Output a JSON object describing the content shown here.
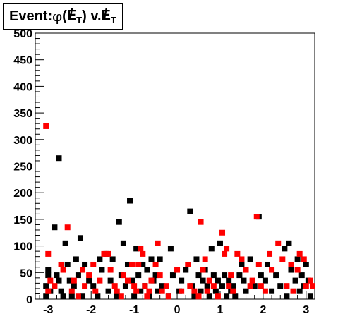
{
  "title": "Event: φ(E̸T) v. E̸T",
  "title_parts": {
    "prefix": "Event: ",
    "phi": "φ",
    "open": "(",
    "met1": "E",
    "sub1": "T",
    "mid": ") v. ",
    "met2": "E",
    "sub2": "T"
  },
  "chart_data": {
    "type": "scatter",
    "title": "Event: φ(E̸T) v. E̸T",
    "xlabel": "",
    "ylabel": "",
    "xlim": [
      -3.3,
      3.2
    ],
    "ylim": [
      0,
      500
    ],
    "xticks": [
      -3,
      -2,
      -1,
      0,
      1,
      2,
      3
    ],
    "yticks": [
      0,
      50,
      100,
      150,
      200,
      250,
      300,
      350,
      400,
      450,
      500
    ],
    "grid": false,
    "legend": "none",
    "marker": "square",
    "series": [
      {
        "color": "#000000",
        "points": [
          [
            -3.05,
            5
          ],
          [
            -3.05,
            25
          ],
          [
            -3.0,
            45
          ],
          [
            -3.0,
            55
          ],
          [
            -2.95,
            15
          ],
          [
            -2.85,
            135
          ],
          [
            -2.8,
            45
          ],
          [
            -2.75,
            35
          ],
          [
            -2.75,
            265
          ],
          [
            -2.7,
            15
          ],
          [
            -2.65,
            5
          ],
          [
            -2.6,
            105
          ],
          [
            -2.55,
            65
          ],
          [
            -2.5,
            35
          ],
          [
            -2.45,
            5
          ],
          [
            -2.4,
            25
          ],
          [
            -2.35,
            75
          ],
          [
            -2.3,
            45
          ],
          [
            -2.25,
            115
          ],
          [
            -2.2,
            5
          ],
          [
            -2.15,
            65
          ],
          [
            -2.05,
            35
          ],
          [
            -1.95,
            25
          ],
          [
            -1.85,
            5
          ],
          [
            -1.8,
            75
          ],
          [
            -1.75,
            55
          ],
          [
            -1.65,
            85
          ],
          [
            -1.6,
            15
          ],
          [
            -1.55,
            35
          ],
          [
            -1.5,
            75
          ],
          [
            -1.4,
            5
          ],
          [
            -1.35,
            145
          ],
          [
            -1.3,
            45
          ],
          [
            -1.25,
            105
          ],
          [
            -1.2,
            25
          ],
          [
            -1.15,
            65
          ],
          [
            -1.1,
            185
          ],
          [
            -1.05,
            35
          ],
          [
            -1.0,
            5
          ],
          [
            -0.95,
            95
          ],
          [
            -0.9,
            45
          ],
          [
            -0.85,
            15
          ],
          [
            -0.8,
            65
          ],
          [
            -0.75,
            25
          ],
          [
            -0.7,
            55
          ],
          [
            -0.65,
            5
          ],
          [
            -0.6,
            75
          ],
          [
            -0.55,
            35
          ],
          [
            -0.5,
            45
          ],
          [
            -0.45,
            15
          ],
          [
            -0.4,
            75
          ],
          [
            -0.35,
            25
          ],
          [
            -0.2,
            5
          ],
          [
            -0.15,
            95
          ],
          [
            -0.1,
            45
          ],
          [
            0.05,
            15
          ],
          [
            0.1,
            35
          ],
          [
            0.2,
            55
          ],
          [
            0.3,
            165
          ],
          [
            0.35,
            25
          ],
          [
            0.4,
            5
          ],
          [
            0.45,
            75
          ],
          [
            0.5,
            45
          ],
          [
            0.55,
            15
          ],
          [
            0.6,
            35
          ],
          [
            0.65,
            55
          ],
          [
            0.7,
            25
          ],
          [
            0.75,
            5
          ],
          [
            0.8,
            95
          ],
          [
            0.85,
            45
          ],
          [
            0.9,
            15
          ],
          [
            0.95,
            35
          ],
          [
            1.0,
            105
          ],
          [
            1.05,
            25
          ],
          [
            1.1,
            45
          ],
          [
            1.15,
            5
          ],
          [
            1.2,
            35
          ],
          [
            1.25,
            15
          ],
          [
            1.3,
            25
          ],
          [
            1.35,
            5
          ],
          [
            1.45,
            45
          ],
          [
            1.5,
            65
          ],
          [
            1.55,
            35
          ],
          [
            1.6,
            15
          ],
          [
            1.7,
            75
          ],
          [
            1.8,
            25
          ],
          [
            1.9,
            155
          ],
          [
            1.95,
            45
          ],
          [
            2.05,
            35
          ],
          [
            2.1,
            65
          ],
          [
            2.2,
            15
          ],
          [
            2.3,
            45
          ],
          [
            2.4,
            25
          ],
          [
            2.5,
            95
          ],
          [
            2.55,
            5
          ],
          [
            2.6,
            105
          ],
          [
            2.65,
            55
          ],
          [
            2.75,
            35
          ],
          [
            2.8,
            75
          ],
          [
            2.85,
            15
          ],
          [
            2.9,
            45
          ],
          [
            2.95,
            25
          ],
          [
            3.0,
            65
          ],
          [
            3.05,
            35
          ],
          [
            3.1,
            5
          ]
        ]
      },
      {
        "color": "#ff0000",
        "points": [
          [
            -3.05,
            325
          ],
          [
            -3.0,
            85
          ],
          [
            -3.0,
            15
          ],
          [
            -2.95,
            35
          ],
          [
            -2.85,
            25
          ],
          [
            -2.7,
            65
          ],
          [
            -2.65,
            55
          ],
          [
            -2.55,
            135
          ],
          [
            -2.45,
            15
          ],
          [
            -2.4,
            35
          ],
          [
            -2.3,
            5
          ],
          [
            -2.2,
            55
          ],
          [
            -2.15,
            25
          ],
          [
            -2.05,
            45
          ],
          [
            -1.95,
            65
          ],
          [
            -1.9,
            15
          ],
          [
            -1.8,
            35
          ],
          [
            -1.7,
            85
          ],
          [
            -1.6,
            85
          ],
          [
            -1.55,
            55
          ],
          [
            -1.45,
            25
          ],
          [
            -1.4,
            15
          ],
          [
            -1.3,
            5
          ],
          [
            -1.25,
            45
          ],
          [
            -1.15,
            35
          ],
          [
            -1.05,
            65
          ],
          [
            -1.0,
            25
          ],
          [
            -0.95,
            15
          ],
          [
            -0.9,
            65
          ],
          [
            -0.85,
            95
          ],
          [
            -0.8,
            85
          ],
          [
            -0.75,
            25
          ],
          [
            -0.7,
            5
          ],
          [
            -0.65,
            15
          ],
          [
            -0.6,
            35
          ],
          [
            -0.5,
            65
          ],
          [
            -0.45,
            105
          ],
          [
            -0.4,
            45
          ],
          [
            -0.35,
            15
          ],
          [
            -0.25,
            25
          ],
          [
            -0.2,
            5
          ],
          [
            0.0,
            55
          ],
          [
            0.1,
            15
          ],
          [
            0.25,
            65
          ],
          [
            0.3,
            25
          ],
          [
            0.4,
            15
          ],
          [
            0.5,
            5
          ],
          [
            0.55,
            145
          ],
          [
            0.6,
            55
          ],
          [
            0.65,
            75
          ],
          [
            0.7,
            15
          ],
          [
            0.75,
            35
          ],
          [
            0.85,
            25
          ],
          [
            0.95,
            5
          ],
          [
            1.05,
            125
          ],
          [
            1.1,
            85
          ],
          [
            1.15,
            95
          ],
          [
            1.2,
            25
          ],
          [
            1.25,
            45
          ],
          [
            1.3,
            15
          ],
          [
            1.4,
            85
          ],
          [
            1.5,
            75
          ],
          [
            1.6,
            55
          ],
          [
            1.7,
            25
          ],
          [
            1.75,
            35
          ],
          [
            1.85,
            155
          ],
          [
            1.9,
            65
          ],
          [
            1.95,
            25
          ],
          [
            2.05,
            15
          ],
          [
            2.15,
            85
          ],
          [
            2.2,
            55
          ],
          [
            2.35,
            105
          ],
          [
            2.45,
            75
          ],
          [
            2.55,
            25
          ],
          [
            2.65,
            65
          ],
          [
            2.7,
            15
          ],
          [
            2.8,
            55
          ],
          [
            2.85,
            85
          ],
          [
            2.95,
            75
          ],
          [
            3.0,
            25
          ],
          [
            3.1,
            35
          ],
          [
            3.15,
            25
          ]
        ]
      }
    ]
  }
}
